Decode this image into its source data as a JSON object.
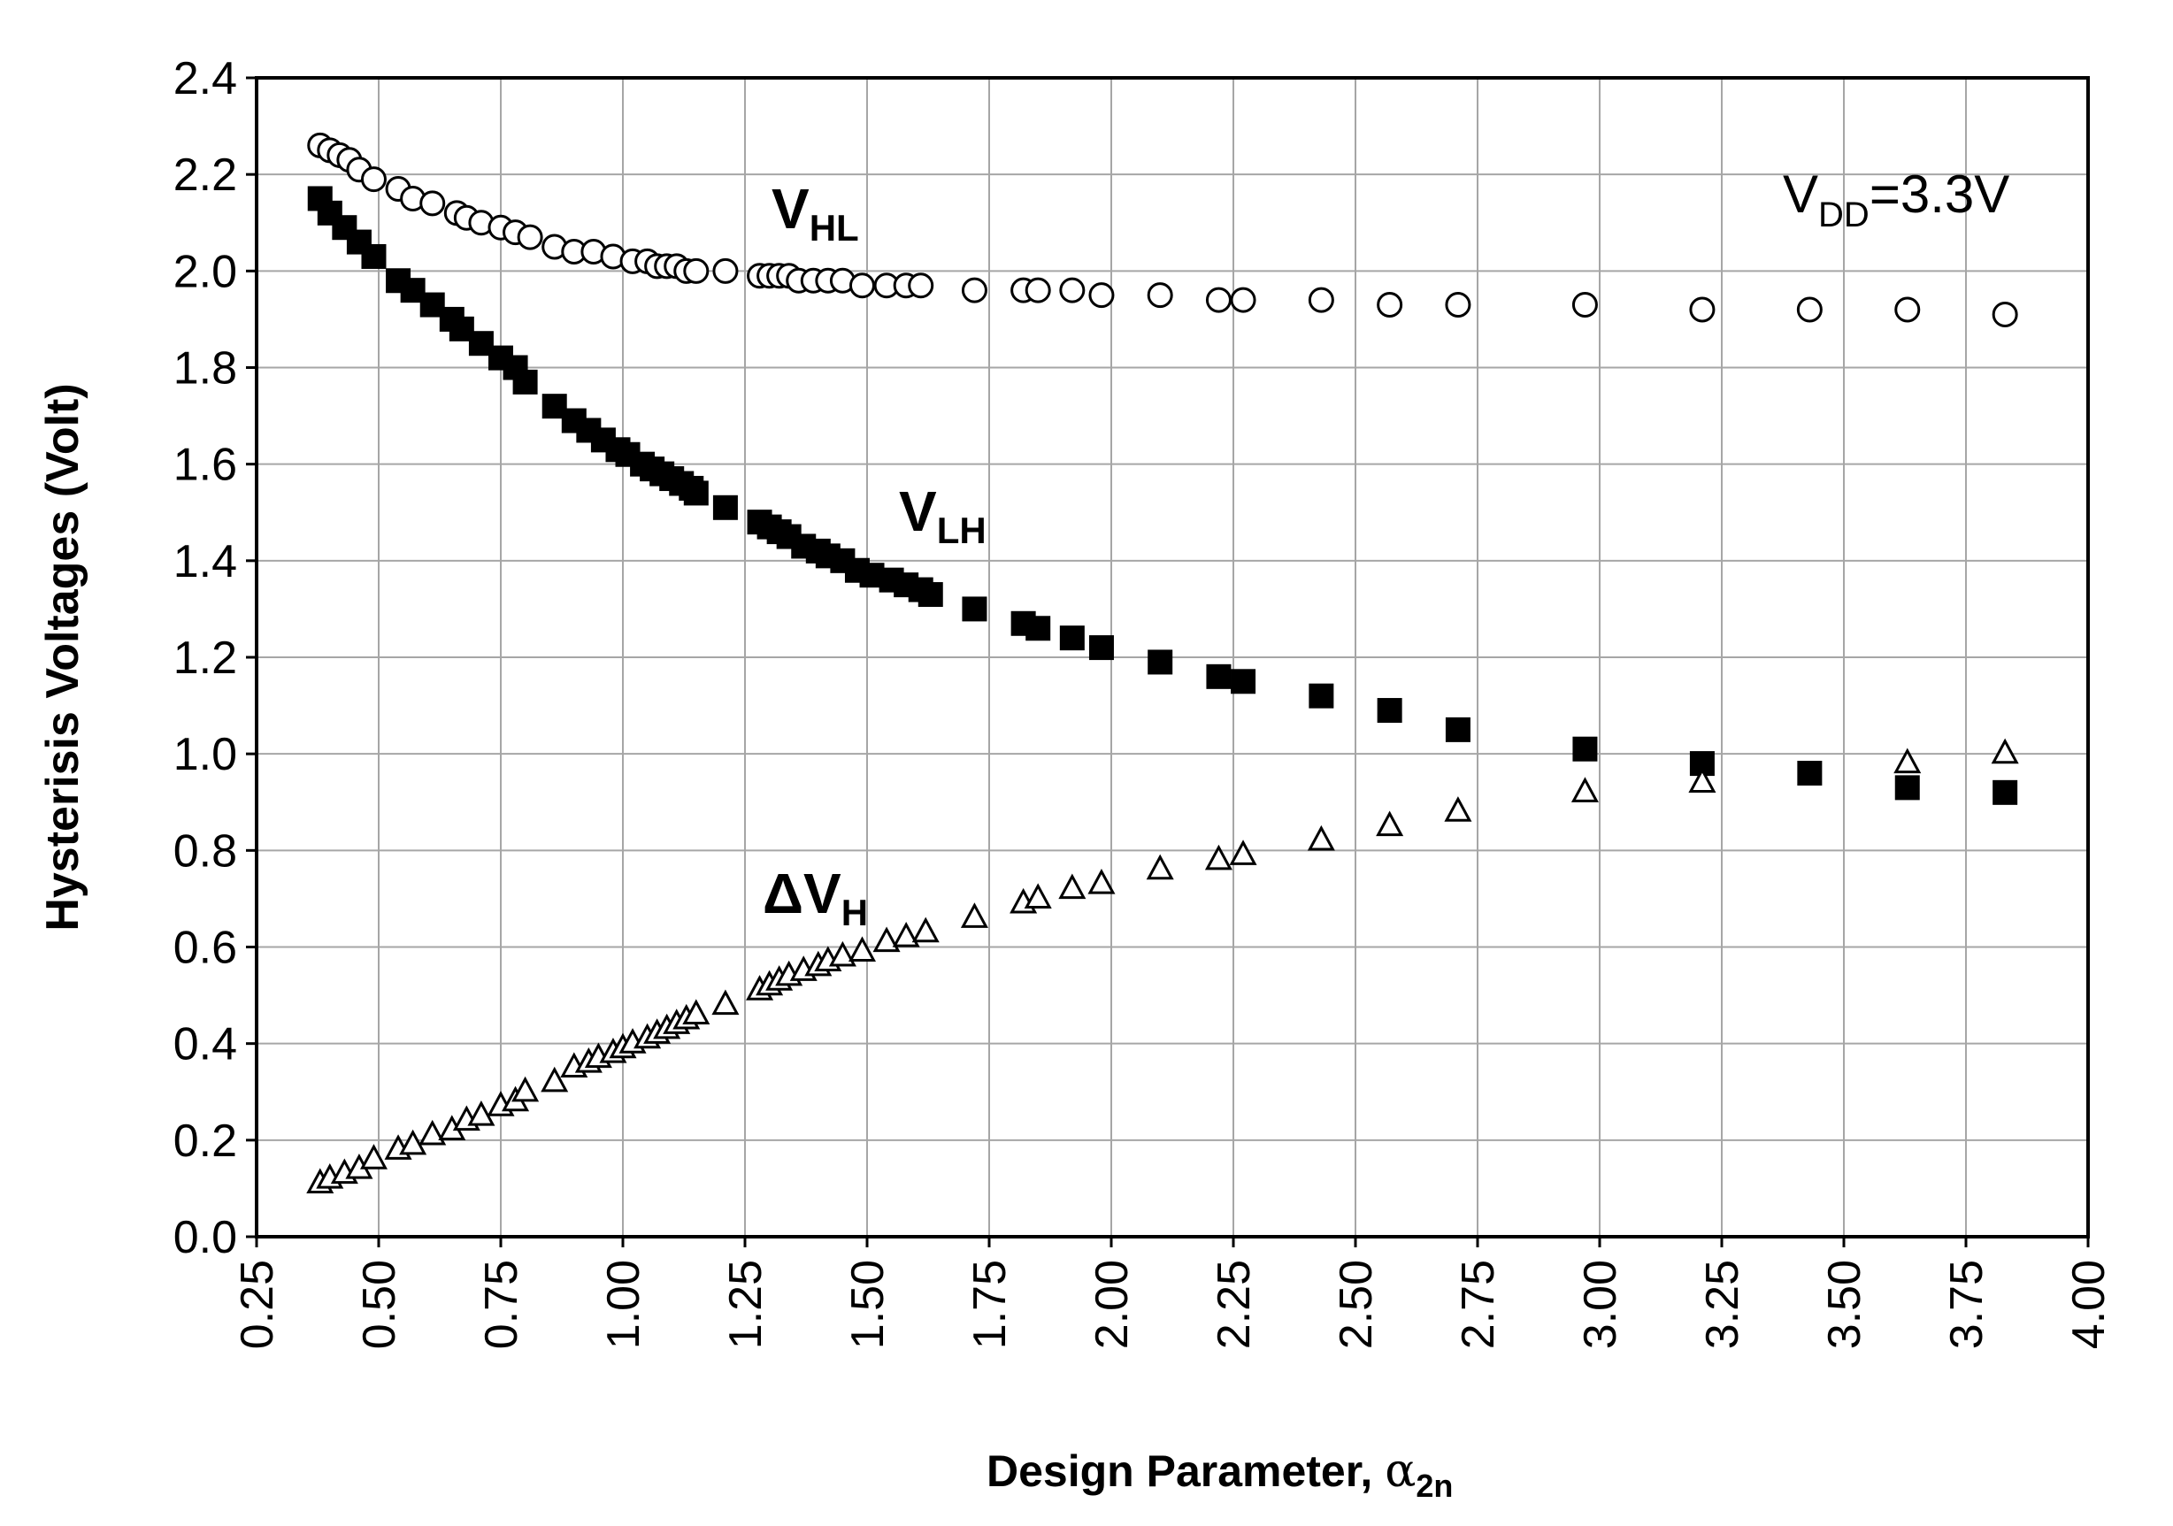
{
  "chart_data": {
    "type": "scatter",
    "title": "",
    "xlabel": "Design Parameter, ",
    "xlabel_symbol": "α",
    "xlabel_sub": "2n",
    "ylabel": "Hysterisis Voltages (Volt)",
    "xlim": [
      0.25,
      4.0
    ],
    "ylim": [
      0.0,
      2.4
    ],
    "x_ticks": [
      "0.25",
      "0.50",
      "0.75",
      "1.00",
      "1.25",
      "1.50",
      "1.75",
      "2.00",
      "2.25",
      "2.50",
      "2.75",
      "3.00",
      "3.25",
      "3.50",
      "3.75",
      "4.00"
    ],
    "y_ticks": [
      "0.0",
      "0.2",
      "0.4",
      "0.6",
      "0.8",
      "1.0",
      "1.2",
      "1.4",
      "1.6",
      "1.8",
      "2.0",
      "2.2",
      "2.4"
    ],
    "grid": true,
    "annotation": {
      "main": "V",
      "sub": "DD",
      "rest": "=3.3V"
    },
    "series": [
      {
        "name": "VHL",
        "label_main": "V",
        "label_sub": "HL",
        "marker": "open-circle",
        "x": [
          0.38,
          0.4,
          0.42,
          0.44,
          0.46,
          0.49,
          0.54,
          0.57,
          0.61,
          0.66,
          0.68,
          0.71,
          0.75,
          0.78,
          0.81,
          0.86,
          0.9,
          0.94,
          0.98,
          1.02,
          1.05,
          1.07,
          1.09,
          1.11,
          1.13,
          1.15,
          1.21,
          1.28,
          1.3,
          1.32,
          1.34,
          1.36,
          1.39,
          1.42,
          1.45,
          1.49,
          1.54,
          1.58,
          1.61,
          1.72,
          1.82,
          1.85,
          1.92,
          1.98,
          2.1,
          2.22,
          2.27,
          2.43,
          2.57,
          2.71,
          2.97,
          3.21,
          3.43,
          3.63,
          3.83
        ],
        "y": [
          2.26,
          2.25,
          2.24,
          2.23,
          2.21,
          2.19,
          2.17,
          2.15,
          2.14,
          2.12,
          2.11,
          2.1,
          2.09,
          2.08,
          2.07,
          2.05,
          2.04,
          2.04,
          2.03,
          2.02,
          2.02,
          2.01,
          2.01,
          2.01,
          2.0,
          2.0,
          2.0,
          1.99,
          1.99,
          1.99,
          1.99,
          1.98,
          1.98,
          1.98,
          1.98,
          1.97,
          1.97,
          1.97,
          1.97,
          1.96,
          1.96,
          1.96,
          1.96,
          1.95,
          1.95,
          1.94,
          1.94,
          1.94,
          1.93,
          1.93,
          1.93,
          1.92,
          1.92,
          1.92,
          1.91
        ]
      },
      {
        "name": "VLH",
        "label_main": "V",
        "label_sub": "LH",
        "marker": "filled-square",
        "x": [
          0.38,
          0.4,
          0.43,
          0.46,
          0.49,
          0.54,
          0.57,
          0.61,
          0.65,
          0.67,
          0.71,
          0.75,
          0.78,
          0.8,
          0.86,
          0.9,
          0.93,
          0.96,
          0.99,
          1.01,
          1.04,
          1.06,
          1.08,
          1.1,
          1.12,
          1.14,
          1.15,
          1.21,
          1.28,
          1.3,
          1.32,
          1.34,
          1.37,
          1.4,
          1.42,
          1.45,
          1.48,
          1.51,
          1.55,
          1.58,
          1.61,
          1.63,
          1.72,
          1.82,
          1.85,
          1.92,
          1.98,
          2.1,
          2.22,
          2.27,
          2.43,
          2.57,
          2.71,
          2.97,
          3.21,
          3.43,
          3.63,
          3.83
        ],
        "y": [
          2.15,
          2.12,
          2.09,
          2.06,
          2.03,
          1.98,
          1.96,
          1.93,
          1.9,
          1.88,
          1.85,
          1.82,
          1.8,
          1.77,
          1.72,
          1.69,
          1.67,
          1.65,
          1.63,
          1.62,
          1.6,
          1.59,
          1.58,
          1.57,
          1.56,
          1.55,
          1.54,
          1.51,
          1.48,
          1.47,
          1.46,
          1.45,
          1.43,
          1.42,
          1.41,
          1.4,
          1.38,
          1.37,
          1.36,
          1.35,
          1.34,
          1.33,
          1.3,
          1.27,
          1.26,
          1.24,
          1.22,
          1.19,
          1.16,
          1.15,
          1.12,
          1.09,
          1.05,
          1.01,
          0.98,
          0.96,
          0.93,
          0.92
        ]
      },
      {
        "name": "ΔVH",
        "label_main": "ΔV",
        "label_sub": "H",
        "marker": "open-triangle",
        "x": [
          0.38,
          0.4,
          0.43,
          0.46,
          0.49,
          0.54,
          0.57,
          0.61,
          0.65,
          0.68,
          0.71,
          0.75,
          0.78,
          0.8,
          0.86,
          0.9,
          0.93,
          0.95,
          0.98,
          1.0,
          1.02,
          1.05,
          1.07,
          1.09,
          1.11,
          1.13,
          1.15,
          1.21,
          1.28,
          1.3,
          1.32,
          1.34,
          1.37,
          1.4,
          1.42,
          1.45,
          1.49,
          1.54,
          1.58,
          1.62,
          1.72,
          1.82,
          1.85,
          1.92,
          1.98,
          2.1,
          2.22,
          2.27,
          2.43,
          2.57,
          2.71,
          2.97,
          3.21,
          3.63,
          3.83
        ],
        "y": [
          0.11,
          0.12,
          0.13,
          0.14,
          0.16,
          0.18,
          0.19,
          0.21,
          0.22,
          0.24,
          0.25,
          0.27,
          0.28,
          0.3,
          0.32,
          0.35,
          0.36,
          0.37,
          0.38,
          0.39,
          0.4,
          0.41,
          0.42,
          0.43,
          0.44,
          0.45,
          0.46,
          0.48,
          0.51,
          0.52,
          0.53,
          0.54,
          0.55,
          0.56,
          0.57,
          0.58,
          0.59,
          0.61,
          0.62,
          0.63,
          0.66,
          0.69,
          0.7,
          0.72,
          0.73,
          0.76,
          0.78,
          0.79,
          0.82,
          0.85,
          0.88,
          0.92,
          0.94,
          0.98,
          1.0
        ]
      }
    ]
  }
}
